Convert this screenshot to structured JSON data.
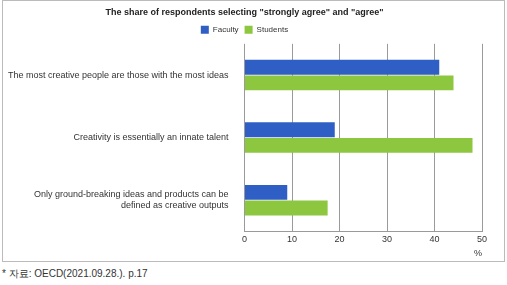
{
  "chart_data": {
    "type": "bar",
    "orientation": "horizontal",
    "title": "The share of respondents selecting \"strongly agree\" and \"agree\"",
    "categories": [
      "The most creative people are those with the most ideas",
      "Creativity is essentially an innate talent",
      "Only ground-breaking ideas and products can be\ndefined as creative outputs"
    ],
    "series": [
      {
        "name": "Faculty",
        "color": "#2f5fc4",
        "values": [
          41,
          19,
          9
        ]
      },
      {
        "name": "Students",
        "color": "#8dc63f",
        "values": [
          44,
          48,
          17.5
        ]
      }
    ],
    "x_label": "%",
    "xlim": [
      0,
      50
    ],
    "xticks": [
      0,
      10,
      20,
      30,
      40,
      50
    ],
    "grid": true,
    "legend": "top",
    "annotations": [
      "* 자료: OECD(2021.09.28.). p.17"
    ]
  }
}
